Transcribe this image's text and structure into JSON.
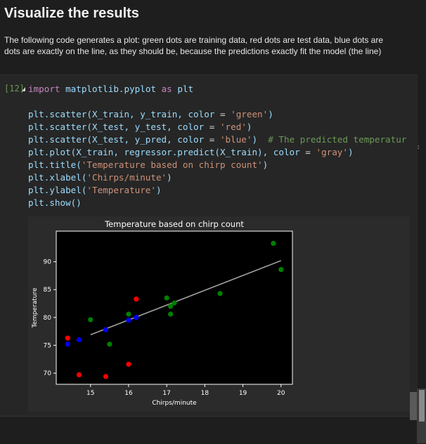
{
  "markdown": {
    "title": "Visualize the results",
    "line1": "The following code generates a plot: green dots are training data, red dots are test data, blue dots are",
    "line2": "dots are exactly on the line, as they should be, because the predictions exactly fit the model (the line)"
  },
  "cell": {
    "prompt": "[12]",
    "import_kw": "import",
    "import_mod": "matplotlib.pyplot",
    "as_kw": "as",
    "alias": "plt",
    "lines": [
      {
        "fn": "plt.scatter(X_train, y_train, color ",
        "op": "=",
        "str": " 'green'",
        "end": ")",
        "comment": ""
      },
      {
        "fn": "plt.scatter(X_test, y_test, color ",
        "op": "=",
        "str": " 'red'",
        "end": ")",
        "comment": ""
      },
      {
        "fn": "plt.scatter(X_test, y_pred, color ",
        "op": "=",
        "str": " 'blue'",
        "end": ")  ",
        "comment": "# The predicted temperatur"
      },
      {
        "fn": "plt.plot(X_train, regressor.predict(X_train), color ",
        "op": "=",
        "str": " 'gray'",
        "end": ")",
        "comment": ""
      },
      {
        "fn": "plt.title(",
        "op": "",
        "str": "'Temperature based on chirp count'",
        "end": ")",
        "comment": ""
      },
      {
        "fn": "plt.xlabel(",
        "op": "",
        "str": "'Chirps/minute'",
        "end": ")",
        "comment": ""
      },
      {
        "fn": "plt.ylabel(",
        "op": "",
        "str": "'Temperature'",
        "end": ")",
        "comment": ""
      },
      {
        "fn": "plt.show()",
        "op": "",
        "str": "",
        "end": "",
        "comment": ""
      }
    ],
    "overflow_marker": ":"
  },
  "chart_data": {
    "type": "scatter",
    "title": "Temperature based on chirp count",
    "xlabel": "Chirps/minute",
    "ylabel": "Temperature",
    "xlim": [
      14.1,
      20.3
    ],
    "ylim": [
      68,
      95.5
    ],
    "xticks": [
      15,
      16,
      17,
      18,
      19,
      20
    ],
    "yticks": [
      70,
      75,
      80,
      85,
      90
    ],
    "background": "#000000",
    "series": [
      {
        "color": "#008000",
        "points": [
          [
            15.0,
            79.6
          ],
          [
            15.5,
            75.2
          ],
          [
            16.0,
            80.6
          ],
          [
            17.0,
            83.5
          ],
          [
            17.1,
            80.6
          ],
          [
            17.1,
            82.0
          ],
          [
            17.2,
            82.6
          ],
          [
            18.4,
            84.3
          ],
          [
            19.8,
            93.3
          ],
          [
            20.0,
            88.6
          ]
        ]
      },
      {
        "color": "#ff0000",
        "points": [
          [
            14.4,
            76.3
          ],
          [
            14.7,
            69.7
          ],
          [
            15.4,
            69.4
          ],
          [
            16.0,
            71.6
          ],
          [
            16.2,
            83.3
          ]
        ]
      },
      {
        "color": "#0000ff",
        "points": [
          [
            14.4,
            75.2
          ],
          [
            14.7,
            76.0
          ],
          [
            15.4,
            77.8
          ],
          [
            16.0,
            79.5
          ],
          [
            16.2,
            80.0
          ]
        ]
      }
    ],
    "line": {
      "color": "#a0a0a0",
      "x": [
        15.0,
        20.0
      ],
      "y": [
        76.9,
        90.2
      ]
    }
  }
}
